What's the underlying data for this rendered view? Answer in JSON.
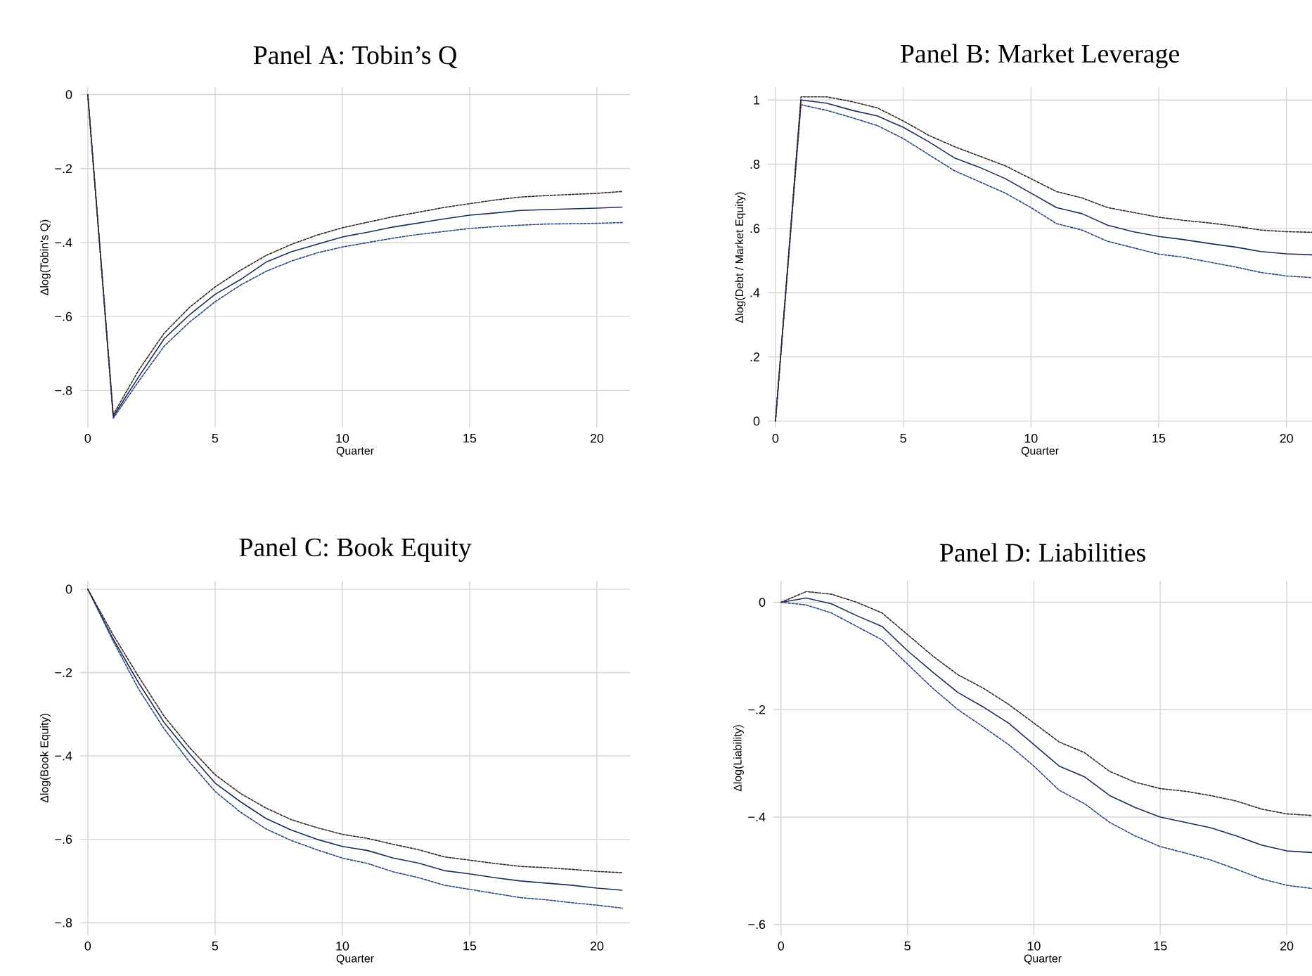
{
  "chart_data": [
    {
      "type": "line",
      "title": "Panel A: Tobin’s Q",
      "xlabel": "Quarter",
      "ylabel": "Δlog(Tobin's Q)",
      "xlim": [
        -0.3,
        21.3
      ],
      "ylim": [
        -0.9,
        0.02
      ],
      "xticks": [
        0,
        5,
        10,
        15,
        20
      ],
      "yticks": [
        {
          "value": -0.8,
          "label": "−.8"
        },
        {
          "value": -0.6,
          "label": "−.6"
        },
        {
          "value": -0.4,
          "label": "−.4"
        },
        {
          "value": -0.2,
          "label": "−.2"
        },
        0
      ],
      "grid": true,
      "x": [
        0,
        1,
        2,
        3,
        4,
        5,
        6,
        7,
        8,
        9,
        10,
        11,
        12,
        13,
        14,
        15,
        16,
        17,
        18,
        19,
        20,
        21
      ],
      "series": [
        {
          "color": "#3a2424",
          "line_style": "dotted",
          "values": [
            0,
            -0.865,
            -0.745,
            -0.645,
            -0.575,
            -0.52,
            -0.475,
            -0.435,
            -0.405,
            -0.38,
            -0.36,
            -0.345,
            -0.33,
            -0.318,
            -0.305,
            -0.295,
            -0.285,
            -0.277,
            -0.273,
            -0.27,
            -0.267,
            -0.262
          ]
        },
        {
          "color": "#2c4680",
          "line_style": "dotted",
          "values": [
            0,
            -0.875,
            -0.775,
            -0.68,
            -0.615,
            -0.56,
            -0.515,
            -0.478,
            -0.45,
            -0.428,
            -0.412,
            -0.4,
            -0.388,
            -0.378,
            -0.37,
            -0.362,
            -0.357,
            -0.353,
            -0.35,
            -0.349,
            -0.348,
            -0.346
          ]
        },
        {
          "color": "#1c2e58",
          "line_style": "solid",
          "values": [
            0,
            -0.87,
            -0.763,
            -0.66,
            -0.595,
            -0.54,
            -0.5,
            -0.453,
            -0.425,
            -0.405,
            -0.385,
            -0.372,
            -0.358,
            -0.347,
            -0.336,
            -0.326,
            -0.32,
            -0.313,
            -0.311,
            -0.309,
            -0.307,
            -0.304
          ]
        }
      ]
    },
    {
      "type": "line",
      "title": "Panel B: Market Leverage",
      "xlabel": "Quarter",
      "ylabel": "Δlog(Debt / Market Equity)",
      "xlim": [
        -0.3,
        21
      ],
      "ylim": [
        -0.02,
        1.04
      ],
      "xticks": [
        0,
        5,
        10,
        15,
        20
      ],
      "yticks": [
        0,
        {
          "value": 0.2,
          "label": ".2"
        },
        {
          "value": 0.4,
          "label": ".4"
        },
        {
          "value": 0.6,
          "label": ".6"
        },
        {
          "value": 0.8,
          "label": ".8"
        },
        1
      ],
      "grid": true,
      "x": [
        0,
        1,
        2,
        3,
        4,
        5,
        6,
        7,
        8,
        9,
        10,
        11,
        12,
        13,
        14,
        15,
        16,
        17,
        18,
        19,
        20,
        21
      ],
      "series": [
        {
          "color": "#3a2424",
          "line_style": "dotted",
          "values": [
            0,
            1.01,
            1.01,
            0.995,
            0.975,
            0.935,
            0.89,
            0.855,
            0.825,
            0.795,
            0.755,
            0.715,
            0.695,
            0.665,
            0.65,
            0.635,
            0.625,
            0.617,
            0.607,
            0.595,
            0.59,
            0.588
          ]
        },
        {
          "color": "#2c4680",
          "line_style": "dotted",
          "values": [
            0,
            0.985,
            0.968,
            0.945,
            0.92,
            0.88,
            0.83,
            0.78,
            0.745,
            0.71,
            0.665,
            0.615,
            0.595,
            0.56,
            0.54,
            0.52,
            0.51,
            0.495,
            0.48,
            0.463,
            0.452,
            0.447
          ]
        },
        {
          "color": "#1c2e58",
          "line_style": "solid",
          "values": [
            0,
            1.0,
            0.99,
            0.968,
            0.95,
            0.915,
            0.87,
            0.82,
            0.79,
            0.755,
            0.71,
            0.665,
            0.646,
            0.61,
            0.59,
            0.575,
            0.565,
            0.553,
            0.542,
            0.528,
            0.521,
            0.518
          ]
        }
      ]
    },
    {
      "type": "line",
      "title": "Panel C: Book Equity",
      "xlabel": "Quarter",
      "ylabel": "Δlog(Book Equity)",
      "xlim": [
        -0.3,
        21.3
      ],
      "ylim": [
        -0.83,
        0.02
      ],
      "xticks": [
        0,
        5,
        10,
        15,
        20
      ],
      "yticks": [
        {
          "value": -0.8,
          "label": "−.8"
        },
        {
          "value": -0.6,
          "label": "−.6"
        },
        {
          "value": -0.4,
          "label": "−.4"
        },
        {
          "value": -0.2,
          "label": "−.2"
        },
        0
      ],
      "grid": true,
      "x": [
        0,
        1,
        2,
        3,
        4,
        5,
        6,
        7,
        8,
        9,
        10,
        11,
        12,
        13,
        14,
        15,
        16,
        17,
        18,
        19,
        20,
        21
      ],
      "series": [
        {
          "color": "#3a2424",
          "line_style": "dotted",
          "values": [
            0,
            -0.11,
            -0.21,
            -0.305,
            -0.38,
            -0.445,
            -0.49,
            -0.525,
            -0.553,
            -0.572,
            -0.588,
            -0.598,
            -0.612,
            -0.625,
            -0.642,
            -0.65,
            -0.658,
            -0.665,
            -0.668,
            -0.672,
            -0.677,
            -0.68
          ]
        },
        {
          "color": "#2c4680",
          "line_style": "dotted",
          "values": [
            0,
            -0.125,
            -0.24,
            -0.335,
            -0.415,
            -0.485,
            -0.535,
            -0.575,
            -0.603,
            -0.625,
            -0.645,
            -0.658,
            -0.678,
            -0.692,
            -0.71,
            -0.72,
            -0.73,
            -0.74,
            -0.745,
            -0.752,
            -0.758,
            -0.765
          ]
        },
        {
          "color": "#1c2e58",
          "line_style": "solid",
          "values": [
            0,
            -0.12,
            -0.225,
            -0.32,
            -0.395,
            -0.465,
            -0.51,
            -0.55,
            -0.578,
            -0.6,
            -0.617,
            -0.627,
            -0.645,
            -0.657,
            -0.675,
            -0.683,
            -0.692,
            -0.7,
            -0.705,
            -0.71,
            -0.717,
            -0.722
          ]
        }
      ]
    },
    {
      "type": "line",
      "title": "Panel D: Liabilities",
      "xlabel": "Quarter",
      "ylabel": "Δlog(Liability)",
      "xlim": [
        -0.3,
        21
      ],
      "ylim": [
        -0.62,
        0.04
      ],
      "xticks": [
        0,
        5,
        10,
        15,
        20
      ],
      "yticks": [
        {
          "value": -0.6,
          "label": "−.6"
        },
        {
          "value": -0.4,
          "label": "−.4"
        },
        {
          "value": -0.2,
          "label": "−.2"
        },
        0
      ],
      "grid": true,
      "x": [
        0,
        1,
        2,
        3,
        4,
        5,
        6,
        7,
        8,
        9,
        10,
        11,
        12,
        13,
        14,
        15,
        16,
        17,
        18,
        19,
        20,
        21
      ],
      "series": [
        {
          "color": "#3a2424",
          "line_style": "dotted",
          "values": [
            0,
            0.02,
            0.015,
            0,
            -0.02,
            -0.06,
            -0.1,
            -0.135,
            -0.16,
            -0.19,
            -0.225,
            -0.26,
            -0.28,
            -0.315,
            -0.335,
            -0.347,
            -0.352,
            -0.36,
            -0.37,
            -0.385,
            -0.394,
            -0.397
          ]
        },
        {
          "color": "#2c4680",
          "line_style": "dotted",
          "values": [
            0,
            -0.005,
            -0.02,
            -0.045,
            -0.07,
            -0.115,
            -0.16,
            -0.2,
            -0.232,
            -0.265,
            -0.305,
            -0.35,
            -0.375,
            -0.41,
            -0.435,
            -0.455,
            -0.467,
            -0.48,
            -0.497,
            -0.515,
            -0.527,
            -0.533
          ]
        },
        {
          "color": "#1c2e58",
          "line_style": "solid",
          "values": [
            0,
            0.008,
            -0.003,
            -0.025,
            -0.045,
            -0.09,
            -0.13,
            -0.168,
            -0.195,
            -0.225,
            -0.265,
            -0.305,
            -0.325,
            -0.36,
            -0.382,
            -0.4,
            -0.41,
            -0.42,
            -0.435,
            -0.452,
            -0.463,
            -0.466
          ]
        }
      ]
    }
  ]
}
